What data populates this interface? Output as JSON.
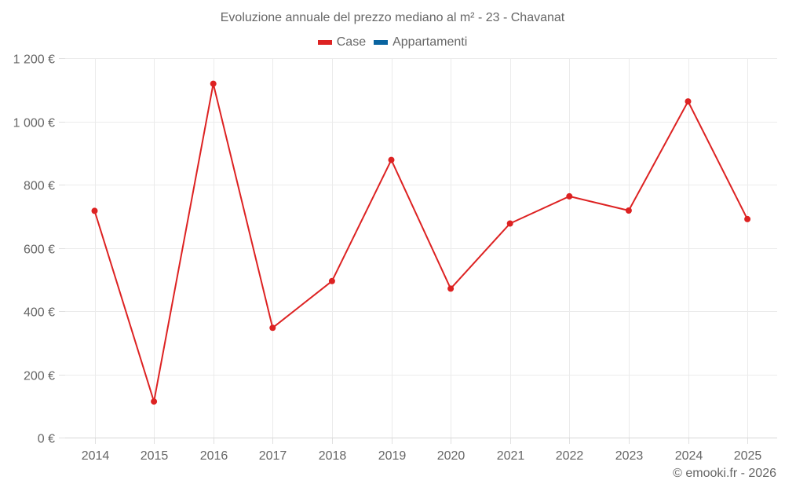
{
  "title": "Evoluzione annuale del prezzo mediano al m² - 23 - Chavanat",
  "legend": [
    {
      "label": "Case",
      "color": "#dd2222"
    },
    {
      "label": "Appartamenti",
      "color": "#0a64a0"
    }
  ],
  "credit": "© emooki.fr - 2026",
  "chart_data": {
    "type": "line",
    "title": "Evoluzione annuale del prezzo mediano al m² - 23 - Chavanat",
    "xlabel": "",
    "ylabel": "",
    "categories": [
      "2014",
      "2015",
      "2016",
      "2017",
      "2018",
      "2019",
      "2020",
      "2021",
      "2022",
      "2023",
      "2024",
      "2025"
    ],
    "series": [
      {
        "name": "Case",
        "color": "#dd2222",
        "values": [
          717,
          114,
          1119,
          347,
          495,
          878,
          471,
          677,
          763,
          718,
          1063,
          691
        ]
      },
      {
        "name": "Appartamenti",
        "color": "#0a64a0",
        "values": []
      }
    ],
    "ylim": [
      0,
      1200
    ],
    "yticks": [
      0,
      200,
      400,
      600,
      800,
      1000,
      1200
    ],
    "ytick_labels": [
      "0 €",
      "200 €",
      "400 €",
      "600 €",
      "800 €",
      "1 000 €",
      "1 200 €"
    ],
    "grid": true,
    "legend_position": "top"
  }
}
